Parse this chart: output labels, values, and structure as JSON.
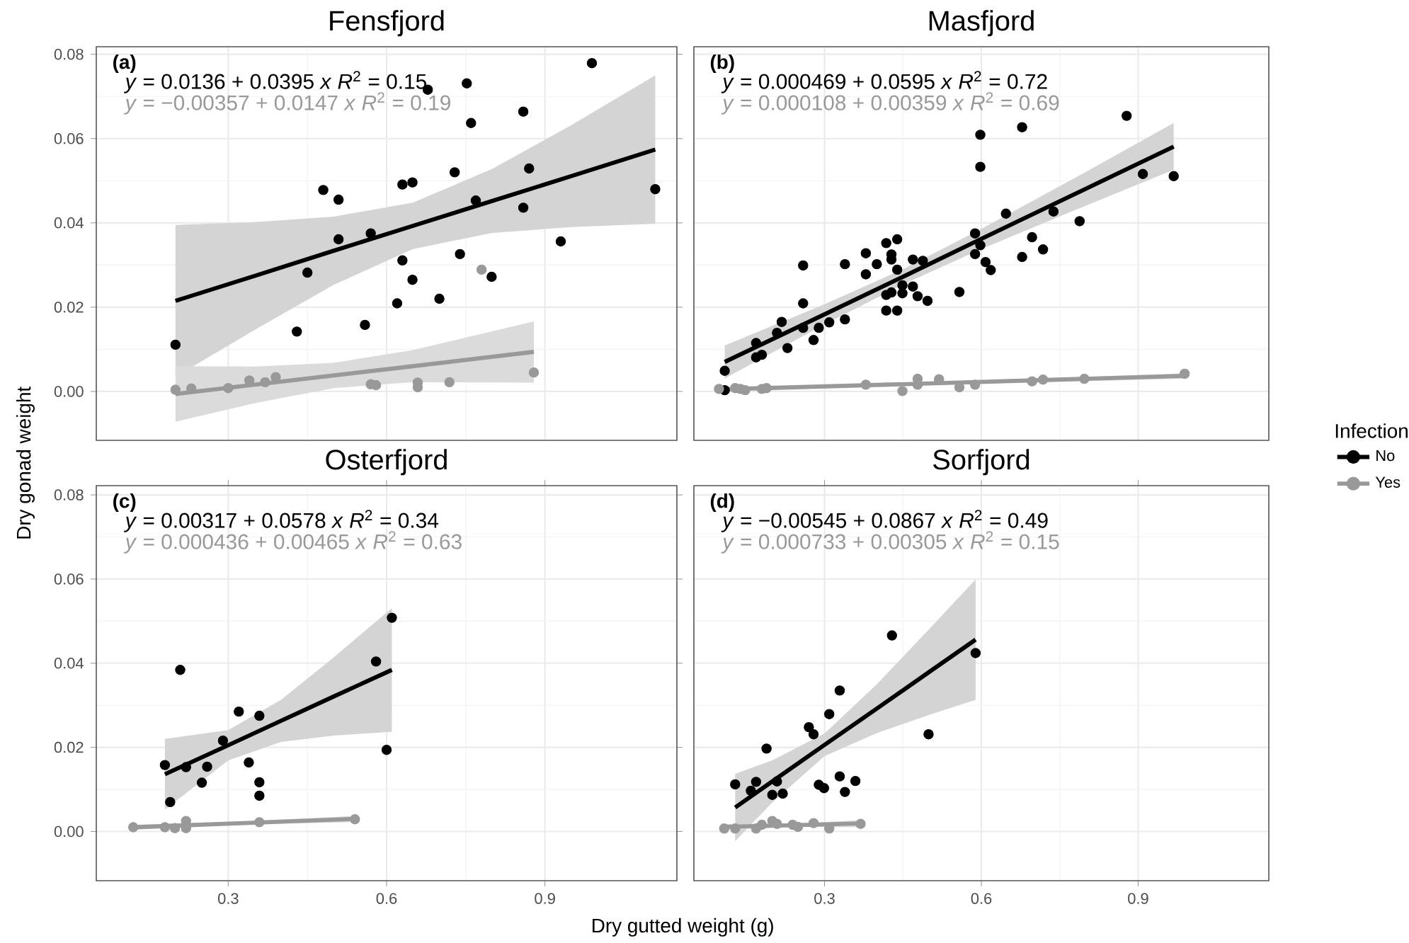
{
  "chart_data": [
    {
      "type": "scatter",
      "title": "Fensfjord",
      "ylabel": "Dry gonad weight",
      "xlim": [
        0.05,
        1.15
      ],
      "ylim": [
        -0.0116,
        0.0818
      ],
      "xticks": [
        0.3,
        0.6,
        0.9
      ],
      "yticks": [
        {
          "value": 0,
          "label": "0.00"
        },
        0.02,
        0.04,
        0.06,
        0.08
      ],
      "grid": true,
      "marker": "circle",
      "tick_labels": "y",
      "annotations": [
        "(a)",
        "*y* = 0.0136 + 0.0395 *x*   *R*$^{2}$ = 0.15",
        "*y* = −0.00357 + 0.0147 *x*   *R*$^{2}$ = 0.19"
      ],
      "series": [
        {
          "color": "#000000",
          "x": [
            0.2,
            0.43,
            0.48,
            0.509,
            0.559,
            0.62,
            0.63,
            0.63,
            0.649,
            0.649,
            0.678,
            0.7,
            0.729,
            0.739,
            0.752,
            0.76,
            0.799,
            0.859,
            0.93,
            0.989,
            1.109,
            0.45,
            0.509,
            0.57,
            0.769,
            0.859,
            0.87
          ],
          "values": [
            0.0111,
            0.0142,
            0.0478,
            0.0455,
            0.0158,
            0.0209,
            0.0311,
            0.0491,
            0.0496,
            0.0265,
            0.0716,
            0.022,
            0.052,
            0.0326,
            0.0731,
            0.0637,
            0.0272,
            0.0664,
            0.0356,
            0.0779,
            0.048,
            0.0282,
            0.0361,
            0.0375,
            0.0453,
            0.0436,
            0.0529
          ]
        },
        {
          "color": "#999999",
          "x": [
            0.2,
            0.23,
            0.3,
            0.34,
            0.37,
            0.39,
            0.57,
            0.58,
            0.659,
            0.659,
            0.719,
            0.78,
            0.879
          ],
          "values": [
            0.0004,
            0.0007,
            0.0008,
            0.0026,
            0.0022,
            0.0034,
            0.0017,
            0.0015,
            0.0021,
            0.001,
            0.0022,
            0.0289,
            0.0045
          ]
        },
        {
          "type": "line",
          "marker": "none",
          "color": "#000000",
          "x": [
            0.2,
            0.35,
            0.5,
            0.65,
            0.8,
            0.95,
            1.109
          ],
          "values": [
            0.0215,
            0.0274,
            0.0334,
            0.0393,
            0.0452,
            0.0511,
            0.0574
          ],
          "lower": [
            0.0035,
            0.0146,
            0.0253,
            0.0338,
            0.0376,
            0.039,
            0.0398
          ],
          "upper": [
            0.0395,
            0.0402,
            0.0415,
            0.0448,
            0.0528,
            0.0632,
            0.075
          ]
        },
        {
          "type": "line",
          "marker": "none",
          "color": "#999999",
          "x": [
            0.2,
            0.35,
            0.5,
            0.65,
            0.879
          ],
          "values": [
            -0.0006,
            0.0016,
            0.0038,
            0.006,
            0.0094
          ],
          "lower": [
            -0.0072,
            -0.0028,
            0.0008,
            0.0022,
            0.0021
          ],
          "upper": [
            0.006,
            0.0059,
            0.0068,
            0.0098,
            0.0166
          ]
        }
      ]
    },
    {
      "type": "scatter",
      "title": "Masfjord",
      "xlim": [
        0.05,
        1.15
      ],
      "ylim": [
        -0.0116,
        0.0818
      ],
      "xticks": [
        0.3,
        0.6,
        0.9
      ],
      "yticks": [
        0,
        0.02,
        0.04,
        0.06,
        0.08
      ],
      "grid": true,
      "marker": "circle",
      "tick_labels": false,
      "legend": "right",
      "legend_title": "Infection",
      "annotations": [
        "(b)",
        "*y* = 0.000469 + 0.0595 *x*   *R*$^{2}$ = 0.72",
        "*y* = 0.000108 + 0.00359 *x*   *R*$^{2}$ = 0.69"
      ],
      "series": [
        {
          "name": "No",
          "color": "#000000",
          "x": [
            0.109,
            0.109,
            0.259,
            0.259,
            0.229,
            0.279,
            0.218,
            0.339,
            0.339,
            0.379,
            0.379,
            0.4,
            0.418,
            0.439,
            0.428,
            0.428,
            0.439,
            0.418,
            0.428,
            0.449,
            0.449,
            0.418,
            0.439,
            0.469,
            0.469,
            0.488,
            0.478,
            0.497,
            0.558,
            0.588,
            0.588,
            0.598,
            0.598,
            0.608,
            0.618,
            0.647,
            0.678,
            0.678,
            0.697,
            0.718,
            0.788,
            0.878,
            0.968,
            0.169,
            0.18,
            0.169,
            0.209,
            0.259,
            0.289,
            0.309,
            0.598,
            0.738,
            0.909
          ],
          "values": [
            0.0049,
            0.0003,
            0.0299,
            0.0209,
            0.0103,
            0.0122,
            0.0165,
            0.0302,
            0.0171,
            0.0328,
            0.0278,
            0.0302,
            0.0352,
            0.0361,
            0.0325,
            0.0313,
            0.0289,
            0.0229,
            0.0235,
            0.0252,
            0.0233,
            0.0192,
            0.0192,
            0.0313,
            0.0249,
            0.031,
            0.0226,
            0.0215,
            0.0236,
            0.0375,
            0.0326,
            0.0609,
            0.0533,
            0.0307,
            0.0288,
            0.0422,
            0.0627,
            0.0319,
            0.0366,
            0.0337,
            0.0404,
            0.0654,
            0.0511,
            0.0115,
            0.0087,
            0.0081,
            0.0139,
            0.0151,
            0.0151,
            0.0164,
            0.0347,
            0.0427,
            0.0516
          ]
        },
        {
          "name": "Yes",
          "color": "#999999",
          "x": [
            0.098,
            0.129,
            0.139,
            0.148,
            0.18,
            0.189,
            0.379,
            0.449,
            0.478,
            0.478,
            0.519,
            0.558,
            0.588,
            0.697,
            0.718,
            0.797,
            0.989
          ],
          "values": [
            0.0006,
            0.0008,
            0.0006,
            0.0003,
            0.0006,
            0.0008,
            0.0016,
            0.0001,
            0.003,
            0.0016,
            0.0029,
            0.001,
            0.0016,
            0.0024,
            0.0028,
            0.003,
            0.0042
          ]
        },
        {
          "type": "line",
          "marker": "none",
          "color": "#000000",
          "x": [
            0.109,
            0.3,
            0.45,
            0.6,
            0.8,
            0.968
          ],
          "values": [
            0.007,
            0.0183,
            0.0272,
            0.0362,
            0.0481,
            0.0581
          ],
          "lower": [
            0.0031,
            0.0159,
            0.0254,
            0.0338,
            0.0441,
            0.0526
          ],
          "upper": [
            0.0109,
            0.0207,
            0.029,
            0.0386,
            0.0521,
            0.0637
          ]
        },
        {
          "type": "line",
          "marker": "none",
          "color": "#999999",
          "x": [
            0.098,
            0.5,
            0.989
          ],
          "values": [
            0.0005,
            0.0019,
            0.0037
          ],
          "lower": [
            0.0,
            0.0016,
            0.003
          ],
          "upper": [
            0.0009,
            0.0022,
            0.0043
          ]
        }
      ]
    },
    {
      "type": "scatter",
      "title": "Osterfjord",
      "xlabel": "Dry gutted weight (g)",
      "xlim": [
        0.05,
        1.15
      ],
      "ylim": [
        -0.0117,
        0.0822
      ],
      "xticks": [
        0.3,
        0.6,
        0.9
      ],
      "yticks": [
        {
          "value": 0,
          "label": "0.00"
        },
        0.02,
        0.04,
        0.06,
        0.08
      ],
      "grid": true,
      "marker": "circle",
      "annotations": [
        "(c)",
        "*y* = 0.00317 + 0.0578 *x*   *R*$^{2}$ = 0.34",
        "*y* = 0.000436 + 0.00465 *x*   *R*$^{2}$ = 0.63"
      ],
      "series": [
        {
          "color": "#000000",
          "x": [
            0.18,
            0.209,
            0.32,
            0.339,
            0.359,
            0.359,
            0.6,
            0.61,
            0.19,
            0.22,
            0.25,
            0.26,
            0.29,
            0.359,
            0.58
          ],
          "values": [
            0.0158,
            0.0384,
            0.0285,
            0.0164,
            0.0117,
            0.0085,
            0.0194,
            0.0508,
            0.007,
            0.0153,
            0.0116,
            0.0154,
            0.0216,
            0.0275,
            0.0404
          ]
        },
        {
          "color": "#999999",
          "x": [
            0.12,
            0.18,
            0.199,
            0.22,
            0.22,
            0.359,
            0.54
          ],
          "values": [
            0.001,
            0.001,
            0.0008,
            0.0025,
            0.0008,
            0.0022,
            0.0029
          ]
        },
        {
          "type": "line",
          "marker": "none",
          "color": "#000000",
          "x": [
            0.18,
            0.3,
            0.4,
            0.5,
            0.61
          ],
          "values": [
            0.0136,
            0.0205,
            0.0263,
            0.0321,
            0.0384
          ],
          "lower": [
            0.0052,
            0.0169,
            0.0213,
            0.0228,
            0.0237
          ],
          "upper": [
            0.022,
            0.0241,
            0.0313,
            0.0414,
            0.0531
          ]
        },
        {
          "type": "line",
          "marker": "none",
          "color": "#999999",
          "x": [
            0.12,
            0.33,
            0.54
          ],
          "values": [
            0.001,
            0.002,
            0.003
          ],
          "lower": [
            0.0004,
            0.0017,
            0.0022
          ],
          "upper": [
            0.0016,
            0.0024,
            0.0037
          ]
        }
      ]
    },
    {
      "type": "scatter",
      "title": "Sorfjord",
      "xlim": [
        0.05,
        1.15
      ],
      "ylim": [
        -0.0117,
        0.0822
      ],
      "xticks": [
        0.3,
        0.6,
        0.9
      ],
      "yticks": [
        0,
        0.02,
        0.04,
        0.06,
        0.08
      ],
      "grid": true,
      "marker": "circle",
      "tick_labels": "x",
      "annotations": [
        "(d)",
        "*y* = −0.00545 + 0.0867 *x*   *R*$^{2}$ = 0.49",
        "*y* = 0.000733 + 0.00305 *x*   *R*$^{2}$ = 0.15"
      ],
      "series": [
        {
          "color": "#000000",
          "x": [
            0.129,
            0.189,
            0.22,
            0.27,
            0.289,
            0.299,
            0.309,
            0.329,
            0.329,
            0.339,
            0.359,
            0.429,
            0.499,
            0.589,
            0.159,
            0.169,
            0.2,
            0.209,
            0.279
          ],
          "values": [
            0.0112,
            0.0197,
            0.009,
            0.0248,
            0.0111,
            0.0103,
            0.0279,
            0.0335,
            0.0131,
            0.0094,
            0.012,
            0.0466,
            0.0231,
            0.0424,
            0.0097,
            0.0118,
            0.0087,
            0.0119,
            0.0231
          ]
        },
        {
          "color": "#999999",
          "x": [
            0.108,
            0.129,
            0.169,
            0.18,
            0.2,
            0.209,
            0.239,
            0.249,
            0.279,
            0.309,
            0.369
          ],
          "values": [
            0.0007,
            0.0007,
            0.0007,
            0.0016,
            0.0025,
            0.0018,
            0.0016,
            0.0011,
            0.002,
            0.0007,
            0.0018
          ]
        },
        {
          "type": "line",
          "marker": "none",
          "color": "#000000",
          "x": [
            0.129,
            0.2,
            0.3,
            0.4,
            0.5,
            0.589
          ],
          "values": [
            0.0057,
            0.0119,
            0.0206,
            0.0292,
            0.0379,
            0.0456
          ],
          "lower": [
            -0.0023,
            0.0069,
            0.0179,
            0.0234,
            0.0277,
            0.0313
          ],
          "upper": [
            0.0137,
            0.0169,
            0.0233,
            0.035,
            0.0481,
            0.0599
          ]
        },
        {
          "type": "line",
          "marker": "none",
          "color": "#999999",
          "x": [
            0.108,
            0.24,
            0.369
          ],
          "values": [
            0.0011,
            0.0015,
            0.0019
          ],
          "lower": [
            0.0004,
            0.0011,
            0.001
          ],
          "upper": [
            0.0017,
            0.0019,
            0.0027
          ]
        }
      ]
    }
  ]
}
